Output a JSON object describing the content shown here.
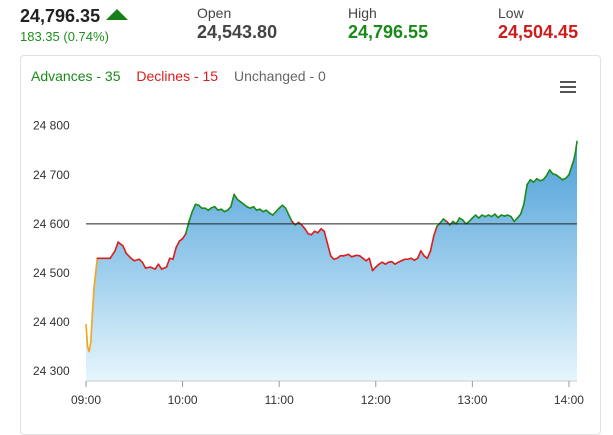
{
  "quote": {
    "last_price": "24,796.35",
    "change": "183.35 (0.74%)",
    "open_label": "Open",
    "open_value": "24,543.80",
    "high_label": "High",
    "high_value": "24,796.55",
    "low_label": "Low",
    "low_value": "24,504.45"
  },
  "legend": {
    "advances": "Advances - 35",
    "declines": "Declines - 15",
    "unchanged": "Unchanged - 0"
  },
  "colors": {
    "up": "#1a8a1a",
    "down": "#d91e1e",
    "early": "#f2a61a",
    "fill_top": "#4a9fd8",
    "fill_bottom": "#e6f6fd"
  },
  "chart_data": {
    "type": "area",
    "xlabel": "",
    "ylabel": "",
    "x_ticks": [
      "09:00",
      "10:00",
      "11:00",
      "12:00",
      "13:00",
      "14:00"
    ],
    "y_ticks": [
      24300,
      24400,
      24500,
      24600,
      24700,
      24800
    ],
    "ylim": [
      24280,
      24830
    ],
    "xlim_minutes": [
      0,
      305
    ],
    "reference_line": 24600,
    "series": [
      {
        "points": [
          [
            0,
            24395
          ],
          [
            1,
            24350
          ],
          [
            2,
            24340
          ],
          [
            3,
            24360
          ],
          [
            4,
            24420
          ],
          [
            5,
            24470
          ],
          [
            6,
            24500
          ],
          [
            7,
            24530
          ],
          [
            10,
            24530
          ],
          [
            15,
            24530
          ],
          [
            18,
            24545
          ],
          [
            20,
            24563
          ],
          [
            23,
            24555
          ],
          [
            25,
            24540
          ],
          [
            28,
            24530
          ],
          [
            30,
            24525
          ],
          [
            33,
            24528
          ],
          [
            35,
            24522
          ],
          [
            37,
            24510
          ],
          [
            40,
            24512
          ],
          [
            43,
            24508
          ],
          [
            45,
            24518
          ],
          [
            47,
            24508
          ],
          [
            50,
            24512
          ],
          [
            52,
            24530
          ],
          [
            54,
            24528
          ],
          [
            56,
            24552
          ],
          [
            58,
            24565
          ],
          [
            60,
            24570
          ],
          [
            62,
            24580
          ],
          [
            64,
            24605
          ],
          [
            66,
            24625
          ],
          [
            68,
            24640
          ],
          [
            70,
            24638
          ],
          [
            72,
            24632
          ],
          [
            74,
            24632
          ],
          [
            76,
            24628
          ],
          [
            78,
            24633
          ],
          [
            80,
            24635
          ],
          [
            82,
            24628
          ],
          [
            84,
            24630
          ],
          [
            86,
            24625
          ],
          [
            88,
            24628
          ],
          [
            90,
            24635
          ],
          [
            92,
            24660
          ],
          [
            94,
            24650
          ],
          [
            96,
            24645
          ],
          [
            98,
            24640
          ],
          [
            100,
            24635
          ],
          [
            102,
            24632
          ],
          [
            104,
            24635
          ],
          [
            106,
            24628
          ],
          [
            108,
            24630
          ],
          [
            110,
            24625
          ],
          [
            112,
            24628
          ],
          [
            114,
            24622
          ],
          [
            116,
            24618
          ],
          [
            118,
            24625
          ],
          [
            120,
            24632
          ],
          [
            122,
            24638
          ],
          [
            124,
            24632
          ],
          [
            126,
            24618
          ],
          [
            128,
            24605
          ],
          [
            130,
            24598
          ],
          [
            132,
            24603
          ],
          [
            134,
            24598
          ],
          [
            136,
            24590
          ],
          [
            138,
            24580
          ],
          [
            140,
            24578
          ],
          [
            142,
            24585
          ],
          [
            144,
            24582
          ],
          [
            146,
            24590
          ],
          [
            148,
            24585
          ],
          [
            150,
            24560
          ],
          [
            152,
            24535
          ],
          [
            154,
            24528
          ],
          [
            156,
            24530
          ],
          [
            158,
            24535
          ],
          [
            160,
            24535
          ],
          [
            163,
            24538
          ],
          [
            165,
            24533
          ],
          [
            168,
            24536
          ],
          [
            170,
            24535
          ],
          [
            172,
            24530
          ],
          [
            174,
            24525
          ],
          [
            176,
            24530
          ],
          [
            178,
            24505
          ],
          [
            180,
            24512
          ],
          [
            182,
            24518
          ],
          [
            184,
            24522
          ],
          [
            186,
            24518
          ],
          [
            188,
            24522
          ],
          [
            190,
            24523
          ],
          [
            192,
            24518
          ],
          [
            194,
            24522
          ],
          [
            196,
            24525
          ],
          [
            198,
            24528
          ],
          [
            200,
            24528
          ],
          [
            202,
            24530
          ],
          [
            204,
            24526
          ],
          [
            206,
            24530
          ],
          [
            208,
            24545
          ],
          [
            210,
            24535
          ],
          [
            212,
            24530
          ],
          [
            214,
            24545
          ],
          [
            216,
            24575
          ],
          [
            218,
            24595
          ],
          [
            220,
            24602
          ],
          [
            222,
            24610
          ],
          [
            224,
            24605
          ],
          [
            226,
            24598
          ],
          [
            228,
            24605
          ],
          [
            230,
            24600
          ],
          [
            232,
            24612
          ],
          [
            234,
            24608
          ],
          [
            236,
            24600
          ],
          [
            238,
            24605
          ],
          [
            240,
            24612
          ],
          [
            242,
            24618
          ],
          [
            244,
            24612
          ],
          [
            246,
            24618
          ],
          [
            248,
            24615
          ],
          [
            250,
            24618
          ],
          [
            252,
            24615
          ],
          [
            254,
            24620
          ],
          [
            256,
            24613
          ],
          [
            258,
            24618
          ],
          [
            260,
            24616
          ],
          [
            262,
            24618
          ],
          [
            264,
            24615
          ],
          [
            266,
            24605
          ],
          [
            268,
            24612
          ],
          [
            270,
            24620
          ],
          [
            272,
            24640
          ],
          [
            274,
            24680
          ],
          [
            276,
            24690
          ],
          [
            278,
            24685
          ],
          [
            280,
            24692
          ],
          [
            282,
            24688
          ],
          [
            284,
            24690
          ],
          [
            286,
            24698
          ],
          [
            288,
            24710
          ],
          [
            290,
            24702
          ],
          [
            292,
            24700
          ],
          [
            294,
            24695
          ],
          [
            296,
            24690
          ],
          [
            298,
            24693
          ],
          [
            300,
            24700
          ],
          [
            302,
            24720
          ],
          [
            303,
            24730
          ],
          [
            304,
            24745
          ],
          [
            305,
            24768
          ]
        ]
      }
    ]
  }
}
